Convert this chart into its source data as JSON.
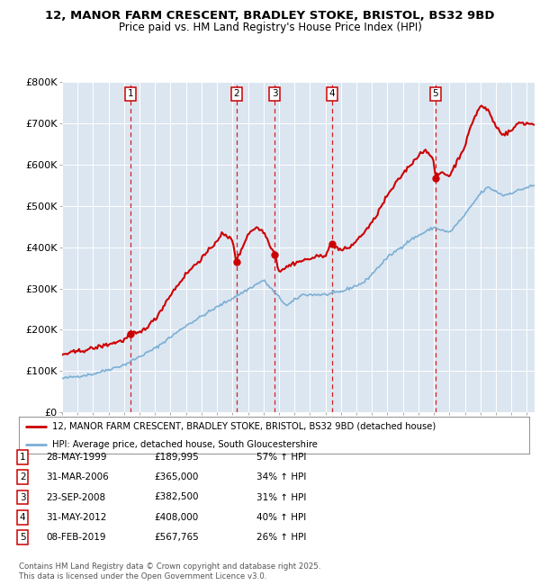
{
  "title_line1": "12, MANOR FARM CRESCENT, BRADLEY STOKE, BRISTOL, BS32 9BD",
  "title_line2": "Price paid vs. HM Land Registry's House Price Index (HPI)",
  "bg_color": "#dce6f1",
  "plot_bg_color": "#dce6f1",
  "red_line_color": "#cc0000",
  "blue_line_color": "#7bafd4",
  "sale_points": [
    {
      "label": "1",
      "date_x": 1999.41,
      "price": 189995
    },
    {
      "label": "2",
      "date_x": 2006.25,
      "price": 365000
    },
    {
      "label": "3",
      "date_x": 2008.73,
      "price": 382500
    },
    {
      "label": "4",
      "date_x": 2012.42,
      "price": 408000
    },
    {
      "label": "5",
      "date_x": 2019.1,
      "price": 567765
    }
  ],
  "legend_entries": [
    "12, MANOR FARM CRESCENT, BRADLEY STOKE, BRISTOL, BS32 9BD (detached house)",
    "HPI: Average price, detached house, South Gloucestershire"
  ],
  "table_rows": [
    [
      "1",
      "28-MAY-1999",
      "£189,995",
      "57% ↑ HPI"
    ],
    [
      "2",
      "31-MAR-2006",
      "£365,000",
      "34% ↑ HPI"
    ],
    [
      "3",
      "23-SEP-2008",
      "£382,500",
      "31% ↑ HPI"
    ],
    [
      "4",
      "31-MAY-2012",
      "£408,000",
      "40% ↑ HPI"
    ],
    [
      "5",
      "08-FEB-2019",
      "£567,765",
      "26% ↑ HPI"
    ]
  ],
  "footer_text": "Contains HM Land Registry data © Crown copyright and database right 2025.\nThis data is licensed under the Open Government Licence v3.0.",
  "ylim": [
    0,
    800000
  ],
  "yticks": [
    0,
    100000,
    200000,
    300000,
    400000,
    500000,
    600000,
    700000,
    800000
  ],
  "ytick_labels": [
    "£0",
    "£100K",
    "£200K",
    "£300K",
    "£400K",
    "£500K",
    "£600K",
    "£700K",
    "£800K"
  ],
  "xlim_start": 1995.0,
  "xlim_end": 2025.5,
  "hpi_control_points": [
    [
      1995.0,
      82000
    ],
    [
      1997.0,
      93000
    ],
    [
      1999.0,
      115000
    ],
    [
      2001.0,
      155000
    ],
    [
      2003.0,
      210000
    ],
    [
      2005.0,
      255000
    ],
    [
      2007.0,
      298000
    ],
    [
      2008.0,
      320000
    ],
    [
      2009.5,
      258000
    ],
    [
      2010.5,
      285000
    ],
    [
      2012.0,
      285000
    ],
    [
      2013.0,
      292000
    ],
    [
      2014.5,
      315000
    ],
    [
      2016.0,
      375000
    ],
    [
      2017.5,
      418000
    ],
    [
      2019.0,
      448000
    ],
    [
      2020.0,
      435000
    ],
    [
      2021.0,
      478000
    ],
    [
      2022.0,
      530000
    ],
    [
      2022.5,
      545000
    ],
    [
      2023.5,
      525000
    ],
    [
      2024.5,
      538000
    ],
    [
      2025.3,
      548000
    ]
  ],
  "prop_control_points": [
    [
      1995.0,
      140000
    ],
    [
      1997.0,
      155000
    ],
    [
      1999.0,
      175000
    ],
    [
      1999.41,
      189995
    ],
    [
      2000.0,
      192000
    ],
    [
      2001.0,
      225000
    ],
    [
      2002.0,
      285000
    ],
    [
      2003.0,
      335000
    ],
    [
      2004.5,
      392000
    ],
    [
      2005.3,
      432000
    ],
    [
      2006.0,
      418000
    ],
    [
      2006.25,
      365000
    ],
    [
      2007.0,
      432000
    ],
    [
      2007.5,
      448000
    ],
    [
      2008.0,
      438000
    ],
    [
      2008.73,
      382500
    ],
    [
      2009.0,
      342000
    ],
    [
      2010.0,
      362000
    ],
    [
      2011.0,
      372000
    ],
    [
      2012.0,
      382000
    ],
    [
      2012.42,
      408000
    ],
    [
      2013.0,
      392000
    ],
    [
      2013.5,
      398000
    ],
    [
      2014.0,
      415000
    ],
    [
      2015.0,
      458000
    ],
    [
      2016.0,
      525000
    ],
    [
      2017.0,
      578000
    ],
    [
      2018.0,
      622000
    ],
    [
      2018.5,
      638000
    ],
    [
      2019.0,
      605000
    ],
    [
      2019.1,
      567765
    ],
    [
      2019.5,
      582000
    ],
    [
      2020.0,
      572000
    ],
    [
      2021.0,
      645000
    ],
    [
      2021.5,
      705000
    ],
    [
      2022.0,
      742000
    ],
    [
      2022.5,
      732000
    ],
    [
      2023.0,
      692000
    ],
    [
      2023.5,
      672000
    ],
    [
      2024.0,
      682000
    ],
    [
      2024.5,
      702000
    ],
    [
      2025.3,
      698000
    ]
  ]
}
